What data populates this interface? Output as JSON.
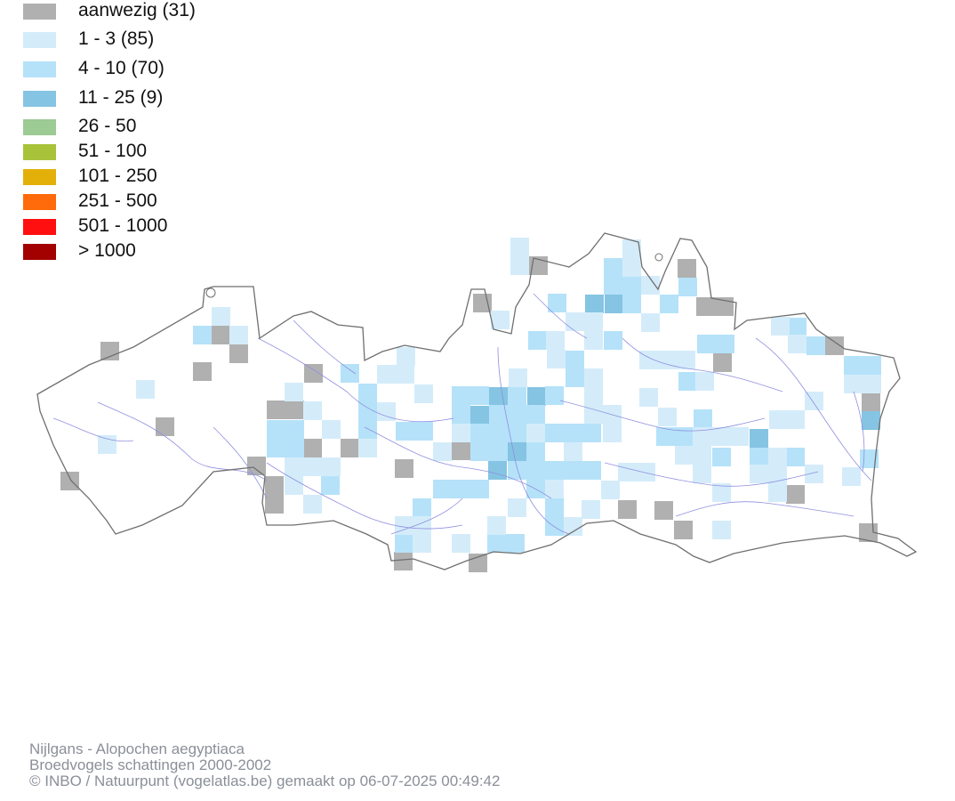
{
  "legend": {
    "items": [
      {
        "label": "aanwezig (31)",
        "color": "#b0b0b0"
      },
      {
        "label": "1 - 3 (85)",
        "color": "#d4ecfa"
      },
      {
        "label": "4 - 10 (70)",
        "color": "#b5e2f9"
      },
      {
        "label": "11 - 25 (9)",
        "color": "#85c4e2"
      },
      {
        "label": "26 - 50",
        "color": "#9ccb94"
      },
      {
        "label": "51 - 100",
        "color": "#a8c23a"
      },
      {
        "label": "101 - 250",
        "color": "#e3b00a"
      },
      {
        "label": "251 - 500",
        "color": "#ff6a0a"
      },
      {
        "label": "501 - 1000",
        "color": "#ff0f0f"
      },
      {
        "label": "> 1000",
        "color": "#a30000"
      }
    ]
  },
  "footer": {
    "species": "Nijlgans - Alopochen aegyptiaca",
    "survey": "Broedvogels schattingen 2000-2002",
    "credit": "© INBO / Natuurpunt (vogelatlas.be) gemaakt op 06-07-2025 00:49:42"
  },
  "map": {
    "border_color": "#6f6f6f",
    "river_color": "#8f8fe0"
  }
}
